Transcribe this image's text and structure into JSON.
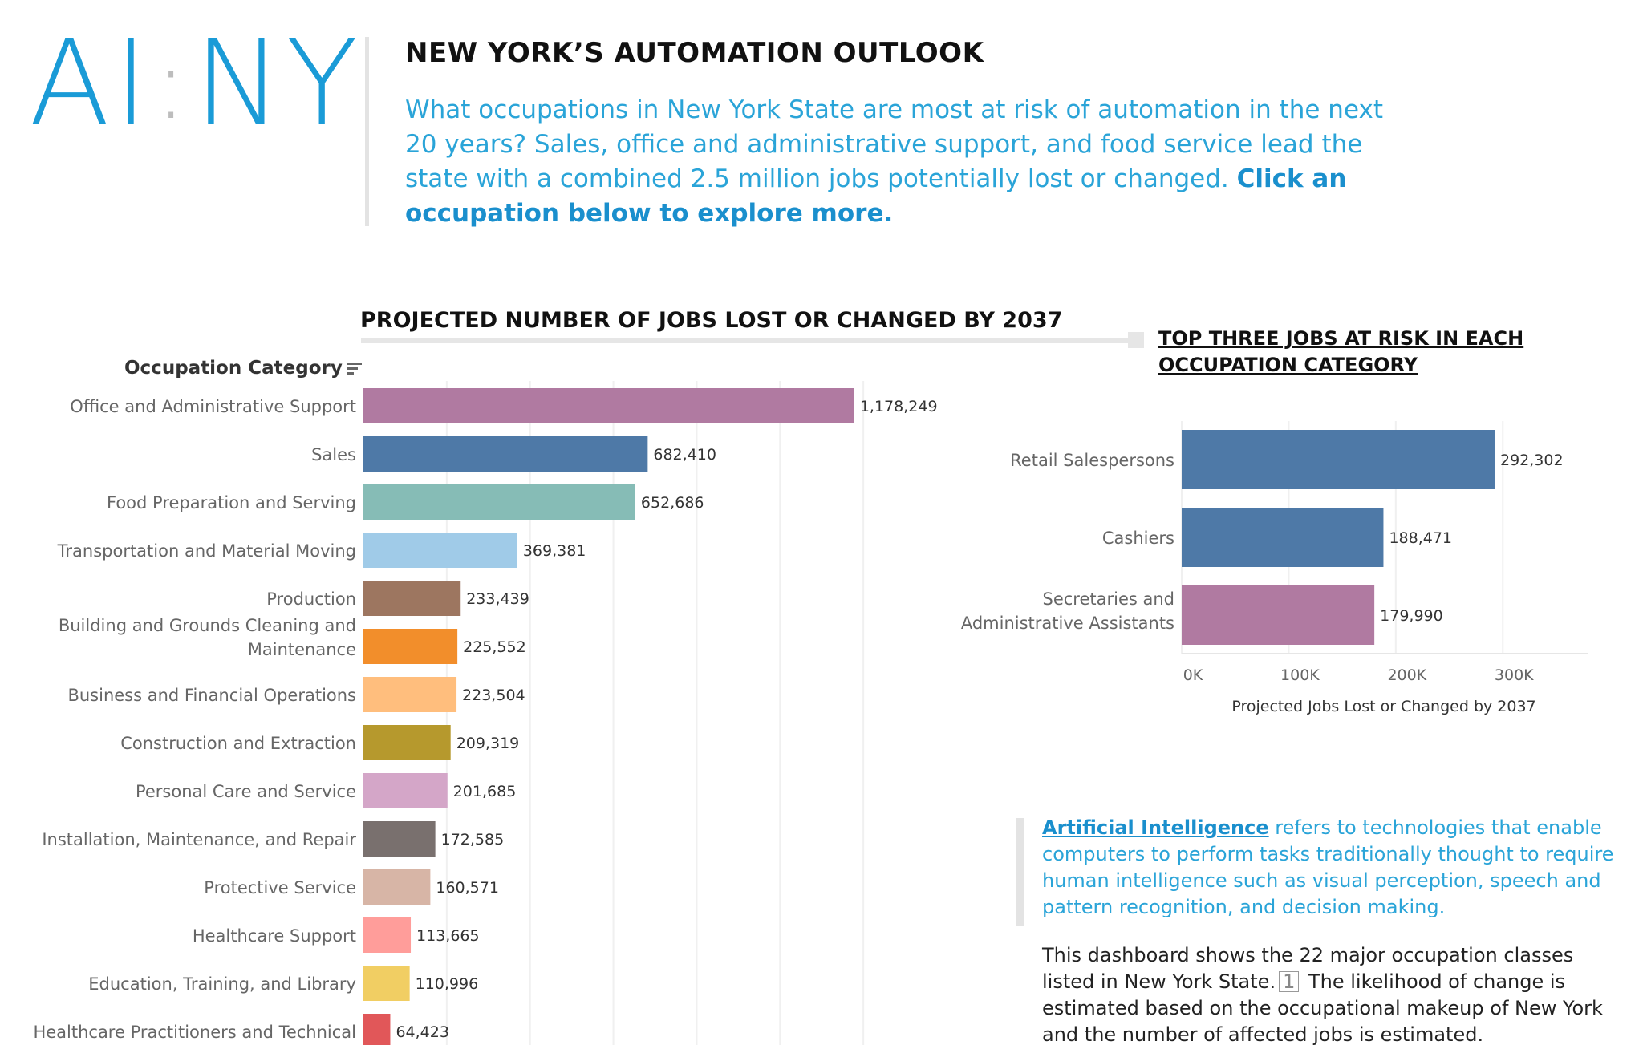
{
  "logo": {
    "left": "AI",
    "colon": ":",
    "right": "NY"
  },
  "header": {
    "title": "NEW YORK’S AUTOMATION OUTLOOK",
    "intro": "What occupations in New York State are most at risk of automation in the next 20 years? Sales, office and administrative support, and food service lead the state with a combined 2.5 million jobs potentially lost or changed.",
    "cta": "Click an occupation below to explore more."
  },
  "main_chart": {
    "title": "PROJECTED NUMBER OF JOBS LOST OR CHANGED BY 2037",
    "axis_header": "Occupation Category"
  },
  "right_chart": {
    "title": "TOP THREE JOBS AT RISK IN EACH OCCUPATION CATEGORY"
  },
  "definition": {
    "link": "Artificial Intelligence",
    "text": " refers to technologies that enable computers to perform tasks traditionally thought to require human intelligence such as visual perception, speech and pattern recognition, and decision making."
  },
  "note": {
    "before": "This dashboard shows the 22 major occupation classes listed in New York State.",
    "ref": "1",
    "after": " The likelihood of change is estimated based on the occupational makeup of New York and the number of affected jobs is estimated."
  },
  "chart_data": [
    {
      "type": "bar",
      "orientation": "horizontal",
      "title": "PROJECTED NUMBER OF JOBS LOST OR CHANGED BY 2037",
      "ylabel": "Occupation Category",
      "xlabel": "",
      "categories": [
        "Office and Administrative Support",
        "Sales",
        "Food Preparation and Serving",
        "Transportation and Material Moving",
        "Production",
        "Building and Grounds Cleaning and Maintenance",
        "Business and Financial Operations",
        "Construction and Extraction",
        "Personal Care and Service",
        "Installation, Maintenance, and Repair",
        "Protective Service",
        "Healthcare Support",
        "Education, Training, and Library",
        "Healthcare Practitioners and Technical"
      ],
      "category_lines": [
        [
          "Office and Administrative Support"
        ],
        [
          "Sales"
        ],
        [
          "Food Preparation and Serving"
        ],
        [
          "Transportation and Material Moving"
        ],
        [
          "Production"
        ],
        [
          "Building and Grounds Cleaning and",
          "Maintenance"
        ],
        [
          "Business and Financial Operations"
        ],
        [
          "Construction and Extraction"
        ],
        [
          "Personal Care and Service"
        ],
        [
          "Installation, Maintenance, and Repair"
        ],
        [
          "Protective Service"
        ],
        [
          "Healthcare Support"
        ],
        [
          "Education, Training, and Library"
        ],
        [
          "Healthcare Practitioners and Technical"
        ]
      ],
      "values": [
        1178249,
        682410,
        652686,
        369381,
        233439,
        225552,
        223504,
        209319,
        201685,
        172585,
        160571,
        113665,
        110996,
        64423
      ],
      "value_labels": [
        "1,178,249",
        "682,410",
        "652,686",
        "369,381",
        "233,439",
        "225,552",
        "223,504",
        "209,319",
        "201,685",
        "172,585",
        "160,571",
        "113,665",
        "110,996",
        "64,423"
      ],
      "colors": [
        "#b07aa1",
        "#4e79a7",
        "#86bcb6",
        "#a0cbe8",
        "#9d7660",
        "#f28e2b",
        "#ffbe7d",
        "#b6992d",
        "#d4a6c8",
        "#79706e",
        "#d7b5a6",
        "#ff9d9a",
        "#f1ce63",
        "#e15759"
      ],
      "xlim": [
        0,
        1400000
      ],
      "grid": true
    },
    {
      "type": "bar",
      "orientation": "horizontal",
      "title": "TOP THREE JOBS AT RISK IN EACH OCCUPATION CATEGORY",
      "xlabel": "Projected Jobs Lost or Changed by 2037",
      "categories": [
        "Retail Salespersons",
        "Cashiers",
        "Secretaries and Administrative Assistants"
      ],
      "category_lines": [
        [
          "Retail Salespersons"
        ],
        [
          "Cashiers"
        ],
        [
          "Secretaries and",
          "Administrative Assistants"
        ]
      ],
      "values": [
        292302,
        188471,
        179990
      ],
      "value_labels": [
        "292,302",
        "188,471",
        "179,990"
      ],
      "colors": [
        "#4e79a7",
        "#4e79a7",
        "#b07aa1"
      ],
      "xticks": [
        0,
        100000,
        200000,
        300000
      ],
      "xtick_labels": [
        "0K",
        "100K",
        "200K",
        "300K"
      ],
      "xlim": [
        0,
        380000
      ],
      "grid": true
    }
  ]
}
